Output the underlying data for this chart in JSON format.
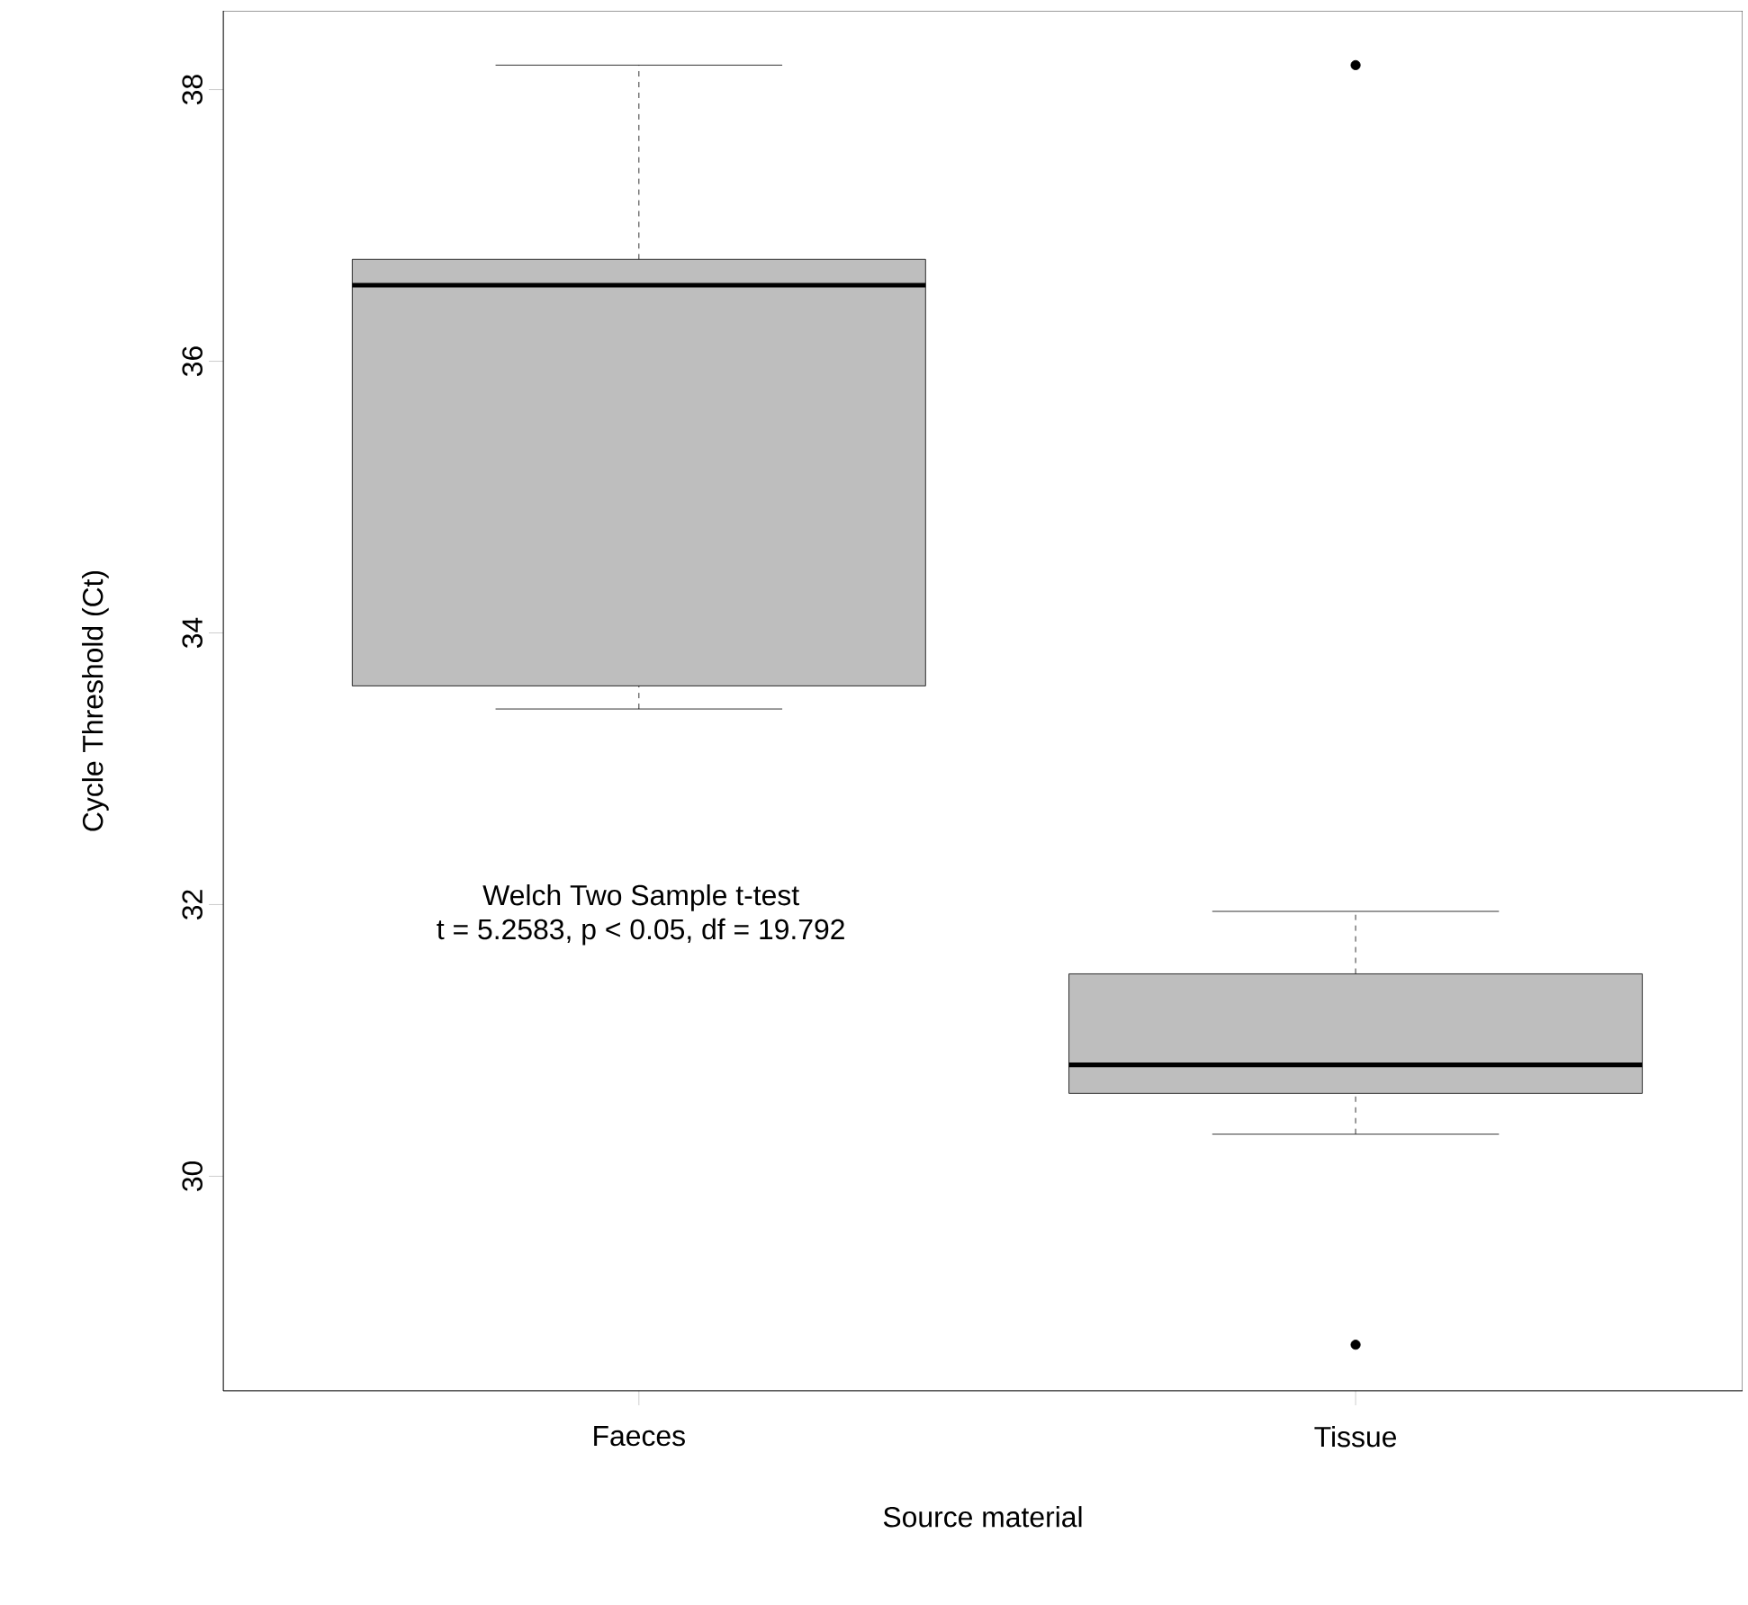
{
  "chart_data": {
    "type": "box",
    "xlabel": "Source material",
    "ylabel": "Cycle Threshold (Ct)",
    "categories": [
      "Faeces",
      "Tissue"
    ],
    "color": "#bebebe",
    "boxes": [
      {
        "low": 33.44,
        "q1": 33.61,
        "median": 36.56,
        "q3": 36.75,
        "high": 38.18
      },
      {
        "low": 30.31,
        "q1": 30.61,
        "median": 30.82,
        "q3": 31.49,
        "high": 31.95,
        "outliers": [
          38.18,
          28.76
        ]
      }
    ],
    "ylim": [
      28.42,
      38.58
    ],
    "yticks": [
      30,
      32,
      34,
      36,
      38
    ],
    "annotations": [
      "Welch Two Sample t-test",
      "t = 5.2583, p < 0.05, df = 19.792"
    ]
  }
}
